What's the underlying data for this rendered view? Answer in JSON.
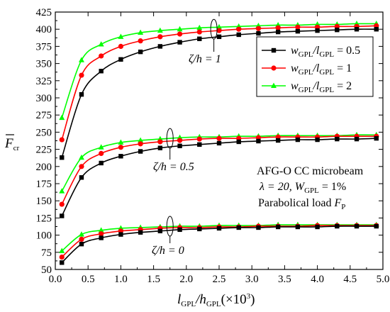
{
  "chart_data": {
    "type": "line",
    "xlabel": {
      "base": "l",
      "sub1": "GPL",
      "mid": "/h",
      "sub2": "GPL",
      "tail": "(×10",
      "sup": "3",
      "end": ")"
    },
    "ylabel": {
      "base": "F",
      "sub": "cr"
    },
    "xlim": [
      0,
      5.0
    ],
    "ylim": [
      50,
      425
    ],
    "xticks": [
      "0.0",
      "0.5",
      "1.0",
      "1.5",
      "2.0",
      "2.5",
      "3.0",
      "3.5",
      "4.0",
      "4.5",
      "5.0"
    ],
    "yticks": [
      "50",
      "75",
      "100",
      "125",
      "150",
      "175",
      "200",
      "225",
      "250",
      "275",
      "300",
      "325",
      "350",
      "375",
      "400",
      "425"
    ],
    "x": [
      0.1,
      0.4,
      0.7,
      1.0,
      1.3,
      1.6,
      1.9,
      2.2,
      2.5,
      2.8,
      3.1,
      3.4,
      3.7,
      4.0,
      4.3,
      4.6,
      4.9
    ],
    "legend": {
      "placement": "top-right",
      "entries": [
        {
          "pre": "w",
          "sub1": "GPL",
          "mid": "/l",
          "sub2": "GPL",
          "val": " = 0.5",
          "color": "#000000",
          "marker": "square"
        },
        {
          "pre": "w",
          "sub1": "GPL",
          "mid": "/l",
          "sub2": "GPL",
          "val": " = 1",
          "color": "#ff0000",
          "marker": "circle"
        },
        {
          "pre": "w",
          "sub1": "GPL",
          "mid": "/l",
          "sub2": "GPL",
          "val": " = 2",
          "color": "#00ff00",
          "marker": "triangle"
        }
      ]
    },
    "groups": [
      {
        "label": "ζ/h = 1",
        "series": [
          {
            "color": "#000000",
            "marker": "square",
            "values": [
              213,
              305,
              339,
              356,
              367,
              375,
              381,
              386,
              389,
              392,
              394,
              396,
              397,
              398,
              399,
              400,
              400
            ]
          },
          {
            "color": "#ff0000",
            "marker": "circle",
            "values": [
              239,
              333,
              361,
              375,
              383,
              389,
              393,
              396,
              398,
              400,
              401,
              402,
              403,
              403,
              404,
              404,
              405
            ]
          },
          {
            "color": "#00ff00",
            "marker": "triangle",
            "values": [
              271,
              355,
              378,
              389,
              395,
              398,
              400,
              402,
              403,
              404,
              405,
              406,
              406,
              407,
              407,
              408,
              408
            ]
          }
        ]
      },
      {
        "label": "ζ/h = 0.5",
        "series": [
          {
            "color": "#000000",
            "marker": "square",
            "values": [
              128,
              184,
              205,
              215,
              222,
              227,
              230,
              232,
              234,
              236,
              237,
              238,
              239,
              239,
              240,
              240,
              241
            ]
          },
          {
            "color": "#ff0000",
            "marker": "circle",
            "values": [
              145,
              200,
              219,
              228,
              233,
              236,
              238,
              240,
              241,
              241,
              242,
              243,
              243,
              243,
              244,
              244,
              244
            ]
          },
          {
            "color": "#00ff00",
            "marker": "triangle",
            "values": [
              164,
              213,
              228,
              235,
              238,
              240,
              242,
              243,
              243,
              244,
              244,
              245,
              245,
              245,
              245,
              246,
              246
            ]
          }
        ]
      },
      {
        "label": "ζ/h = 0",
        "series": [
          {
            "color": "#000000",
            "marker": "square",
            "values": [
              60,
              87,
              96,
              101,
              104,
              106,
              108,
              109,
              110,
              111,
              111,
              112,
              112,
              112,
              113,
              113,
              113
            ]
          },
          {
            "color": "#ff0000",
            "marker": "circle",
            "values": [
              68,
              94,
              102,
              106,
              108,
              110,
              111,
              111,
              112,
              112,
              113,
              113,
              113,
              114,
              114,
              114,
              114
            ]
          },
          {
            "color": "#00ff00",
            "marker": "triangle",
            "values": [
              77,
              101,
              107,
              110,
              111,
              112,
              113,
              113,
              114,
              114,
              114,
              115,
              115,
              115,
              115,
              115,
              115
            ]
          }
        ]
      }
    ],
    "annotation": {
      "line1": "AFG-O CC microbeam",
      "line2_a": "λ = 20, ",
      "line2_b": "W",
      "line2_sub": "GPL",
      "line2_c": " = 1%",
      "line3_a": "Parabolical load ",
      "line3_b": "F",
      "line3_sub": "P"
    }
  }
}
